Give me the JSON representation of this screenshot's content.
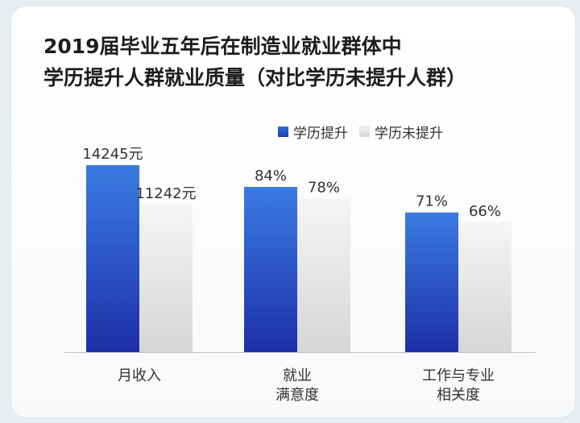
{
  "title_lines": [
    "2019届毕业五年后在制造业就业群体中",
    "学历提升人群就业质量（对比学历未提升人群）"
  ],
  "colors": {
    "series_a_top": "#3a7be0",
    "series_a_bottom": "#1d2fa8",
    "series_b_top": "#f5f5f5",
    "series_b_bottom": "#d6d6d6"
  },
  "chart_data": {
    "type": "bar",
    "categories": [
      [
        "月收入"
      ],
      [
        "就业",
        "满意度"
      ],
      [
        "工作与专业",
        "相关度"
      ]
    ],
    "series": [
      {
        "name": "学历提升",
        "values": [
          14245,
          84,
          71
        ],
        "labels": [
          "14245元",
          "84%",
          "71%"
        ]
      },
      {
        "name": "学历未提升",
        "values": [
          11242,
          78,
          66
        ],
        "labels": [
          "11242元",
          "78%",
          "66%"
        ]
      }
    ],
    "legend_position": "top-right",
    "grid": false
  }
}
